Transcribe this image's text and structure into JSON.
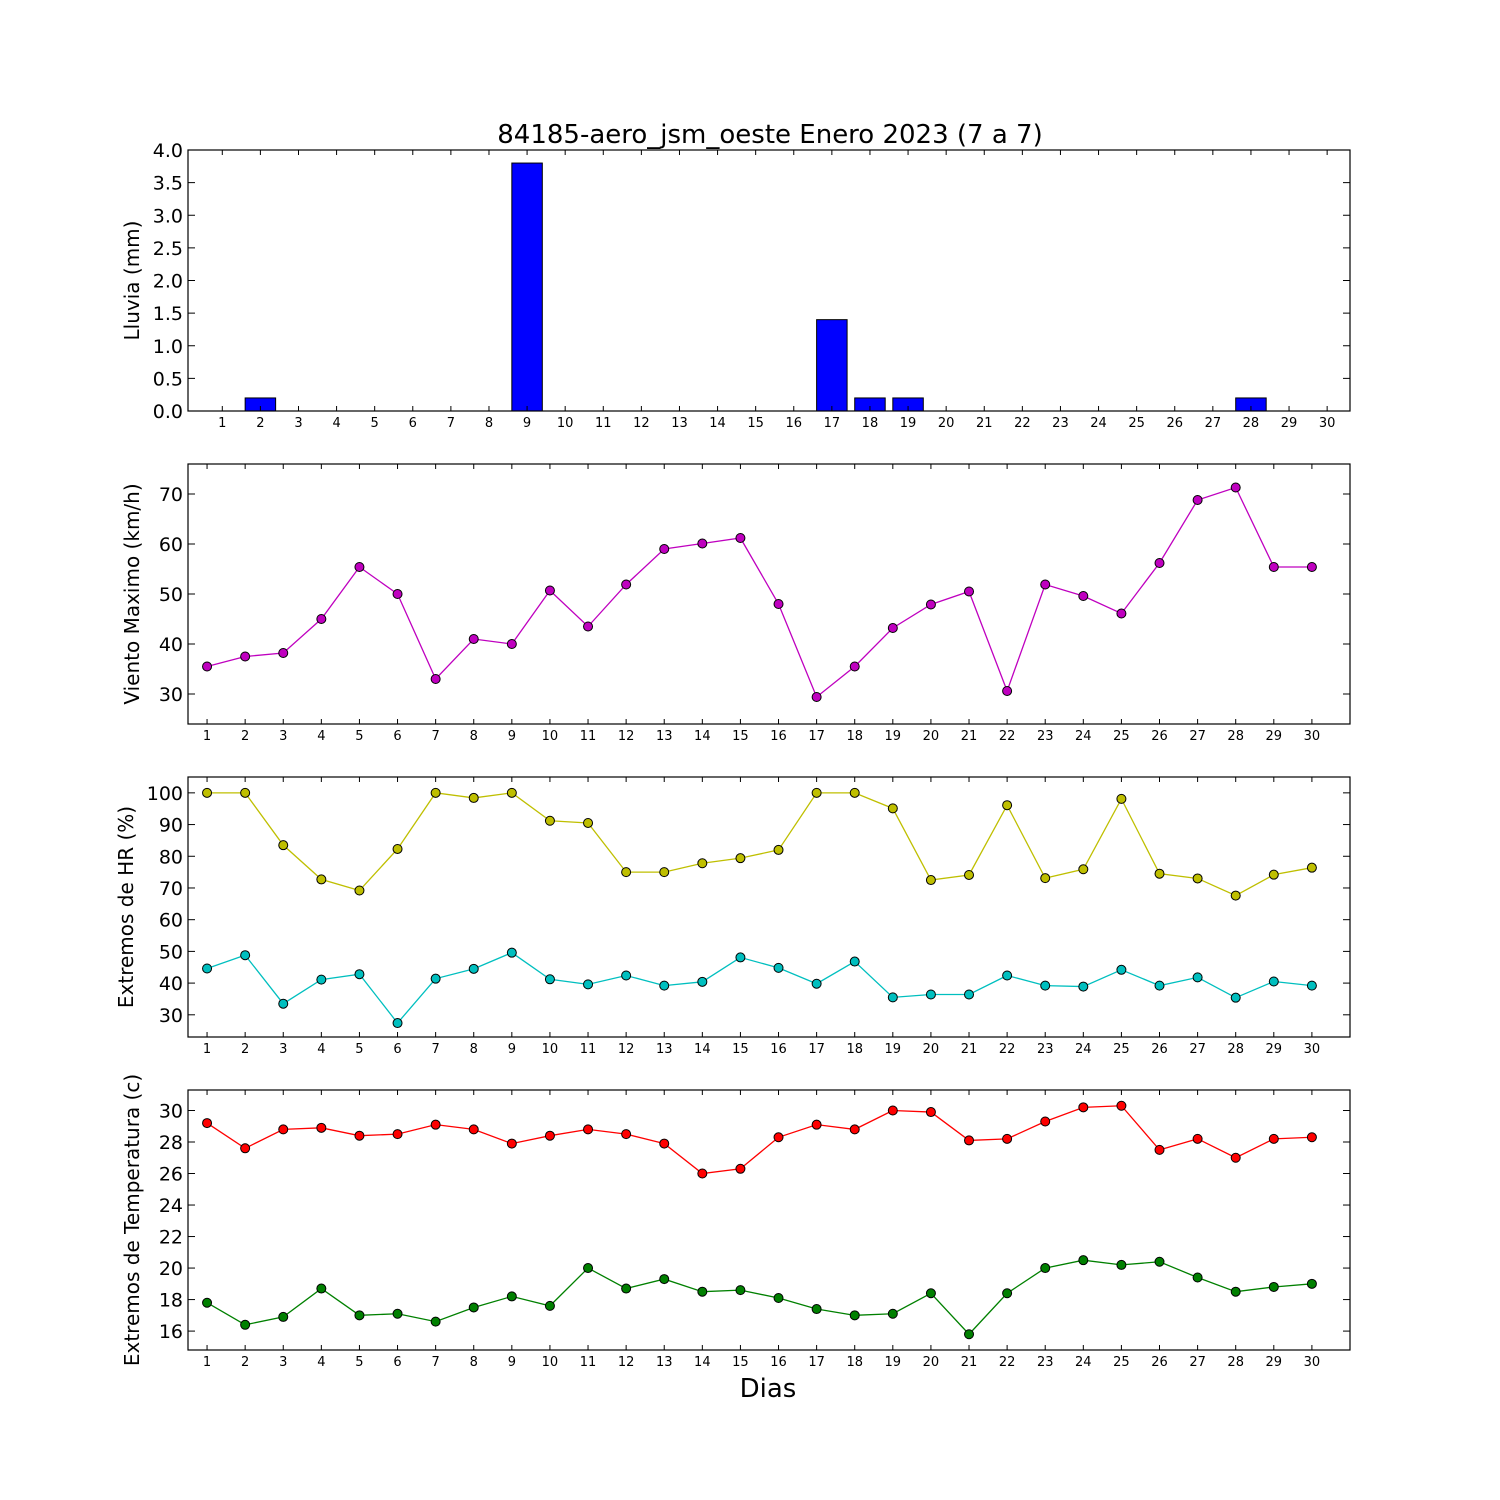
{
  "title": "84185-aero_jsm_oeste Enero 2023  (7 a 7)",
  "xlabel": "Dias",
  "days": [
    1,
    2,
    3,
    4,
    5,
    6,
    7,
    8,
    9,
    10,
    11,
    12,
    13,
    14,
    15,
    16,
    17,
    18,
    19,
    20,
    21,
    22,
    23,
    24,
    25,
    26,
    27,
    28,
    29,
    30
  ],
  "chart_data": [
    {
      "type": "bar",
      "ylabel": "Lluvia (mm)",
      "ylim": [
        0,
        4.0
      ],
      "yticks": [
        0.0,
        0.5,
        1.0,
        1.5,
        2.0,
        2.5,
        3.0,
        3.5,
        4.0
      ],
      "ytick_labels": [
        "0.0",
        "0.5",
        "1.0",
        "1.5",
        "2.0",
        "2.5",
        "3.0",
        "3.5",
        "4.0"
      ],
      "grid": false,
      "series": [
        {
          "color": "#0000ff",
          "values": [
            0,
            0.2,
            0,
            0,
            0,
            0,
            0,
            0,
            3.8,
            0,
            0,
            0,
            0,
            0,
            0,
            0,
            1.4,
            0.2,
            0.2,
            0,
            0,
            0,
            0,
            0,
            0,
            0,
            0,
            0.2,
            0,
            0
          ]
        }
      ]
    },
    {
      "type": "line",
      "ylabel": "Viento Maximo (km/h)",
      "ylim": [
        24,
        76
      ],
      "yticks": [
        30,
        40,
        50,
        60,
        70
      ],
      "ytick_labels": [
        "30",
        "40",
        "50",
        "60",
        "70"
      ],
      "grid": false,
      "series": [
        {
          "color": "#bf00bf",
          "values": [
            35.5,
            37.5,
            38.2,
            45,
            55.4,
            50,
            33,
            41,
            40,
            50.7,
            43.5,
            51.9,
            59,
            60.1,
            61.2,
            48,
            29.4,
            35.5,
            43.2,
            47.9,
            50.5,
            30.6,
            51.9,
            49.6,
            46.1,
            56.2,
            68.8,
            71.3,
            55.4,
            55.4
          ]
        }
      ]
    },
    {
      "type": "line",
      "ylabel": "Extremos de HR (%)",
      "ylim": [
        23,
        105
      ],
      "yticks": [
        30,
        40,
        50,
        60,
        70,
        80,
        90,
        100
      ],
      "ytick_labels": [
        "30",
        "40",
        "50",
        "60",
        "70",
        "80",
        "90",
        "100"
      ],
      "grid": false,
      "series": [
        {
          "color": "#bfbf00",
          "values": [
            100,
            100,
            83.5,
            72.7,
            69.2,
            82.3,
            100,
            98.4,
            100,
            91.2,
            90.5,
            75,
            75,
            77.8,
            79.4,
            82,
            100,
            100,
            95.1,
            72.5,
            74.1,
            96.1,
            73.1,
            75.9,
            98.1,
            74.5,
            73,
            67.6,
            74.2,
            76.4
          ]
        },
        {
          "color": "#00bfbf",
          "values": [
            44.6,
            48.8,
            33.5,
            41.1,
            42.8,
            27.4,
            41.4,
            44.5,
            49.6,
            41.2,
            39.6,
            42.4,
            39.2,
            40.4,
            48.1,
            44.8,
            39.8,
            46.8,
            35.5,
            36.4,
            36.4,
            42.4,
            39.2,
            38.9,
            44.2,
            39.2,
            41.8,
            35.4,
            40.5,
            39.2
          ]
        }
      ]
    },
    {
      "type": "line",
      "ylabel": "Extremos de Temperatura (c)",
      "ylim": [
        14.8,
        31.3
      ],
      "yticks": [
        16,
        18,
        20,
        22,
        24,
        26,
        28,
        30
      ],
      "ytick_labels": [
        "16",
        "18",
        "20",
        "22",
        "24",
        "26",
        "28",
        "30"
      ],
      "grid": false,
      "series": [
        {
          "color": "#ff0000",
          "values": [
            29.2,
            27.6,
            28.8,
            28.9,
            28.4,
            28.5,
            29.1,
            28.8,
            27.9,
            28.4,
            28.8,
            28.5,
            27.9,
            26,
            26.3,
            28.3,
            29.1,
            28.8,
            30,
            29.9,
            28.1,
            28.2,
            29.3,
            30.2,
            30.3,
            27.5,
            28.2,
            27,
            28.2,
            28.3
          ]
        },
        {
          "color": "#008000",
          "values": [
            17.8,
            16.4,
            16.9,
            18.7,
            17,
            17.1,
            16.6,
            17.5,
            18.2,
            17.6,
            20,
            18.7,
            19.3,
            18.5,
            18.6,
            18.1,
            17.4,
            17,
            17.1,
            18.4,
            15.8,
            18.4,
            20,
            20.5,
            20.2,
            20.4,
            19.4,
            18.5,
            18.8,
            19
          ]
        }
      ]
    }
  ]
}
